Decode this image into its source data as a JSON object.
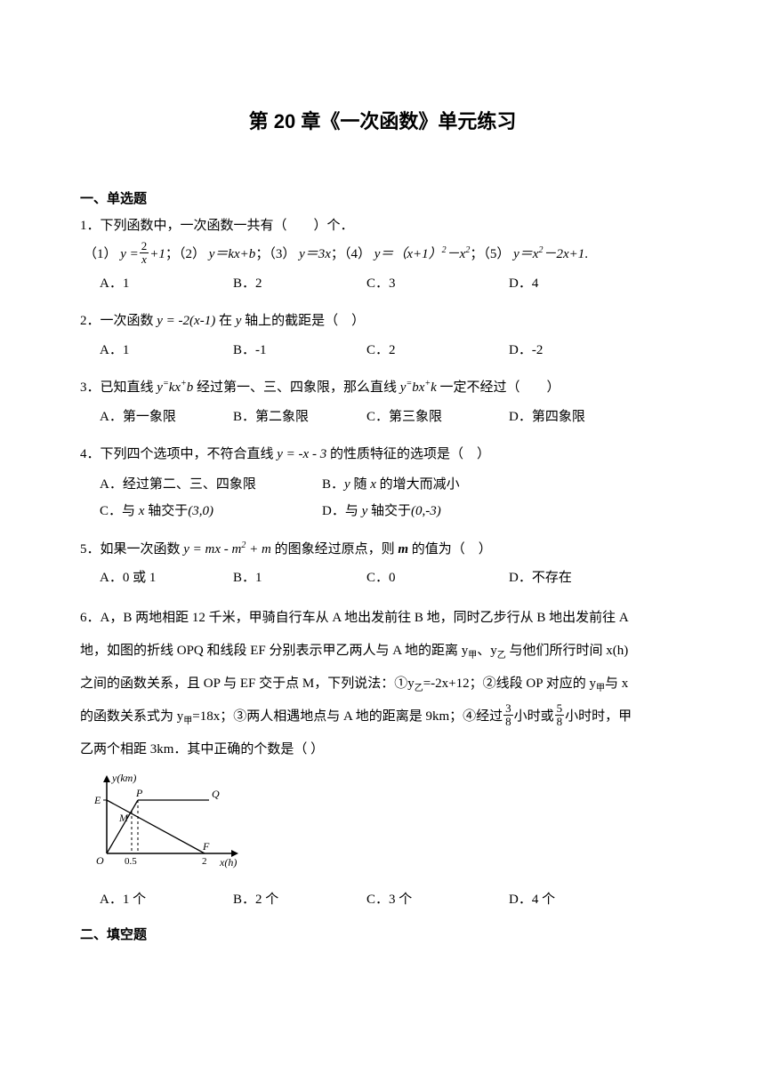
{
  "title": "第 20 章《一次函数》单元练习",
  "section1_header": "一、单选题",
  "section2_header": "二、填空题",
  "q1": {
    "stem": "1．下列函数中，一次函数一共有（　　）个．",
    "sub_prefix": "（1）",
    "sub_part2": "（2）",
    "sub_part3": "（3）",
    "sub_part4": "（4）",
    "sub_part5": "（5）",
    "optA": "A．1",
    "optB": "B．2",
    "optC": "C．3",
    "optD": "D．4"
  },
  "q2": {
    "stem_pre": "2．一次函数 ",
    "stem_mid": " 在 ",
    "stem_post": " 轴上的截距是（　）",
    "optA": "A．1",
    "optB": "B．-1",
    "optC": "C．2",
    "optD": "D．-2"
  },
  "q3": {
    "stem_pre": "3．已知直线 ",
    "stem_mid": " 经过第一、三、四象限，那么直线 ",
    "stem_post": " 一定不经过（　　）",
    "optA": "A．第一象限",
    "optB": "B．第二象限",
    "optC": "C．第三象限",
    "optD": "D．第四象限"
  },
  "q4": {
    "stem_pre": "4．下列四个选项中，不符合直线 ",
    "stem_post": " 的性质特征的选项是（　）",
    "optA": "A．经过第二、三、四象限",
    "optB_pre": "B．",
    "optB_mid": " 随 ",
    "optB_post": " 的增大而减小",
    "optC_pre": "C．与 ",
    "optC_mid": " 轴交于",
    "optC_val": "(3,0)",
    "optD_pre": "D．与 ",
    "optD_mid": " 轴交于",
    "optD_val": "(0,-3)"
  },
  "q5": {
    "stem_pre": "5．如果一次函数 ",
    "stem_mid": " 的图象经过原点，则 ",
    "stem_post": " 的值为（　）",
    "optA": "A．0 或 1",
    "optB": "B．1",
    "optC": "C．0",
    "optD": "D．不存在"
  },
  "q6": {
    "line1": "6．A，B 两地相距 12 千米，甲骑自行车从 A 地出发前往 B 地，同时乙步行从 B 地出发前往 A",
    "line2_pre": "地，如图的折线 OPQ 和线段 EF 分别表示甲乙两人与 A 地的距离 y",
    "line2_sub1": "甲",
    "line2_mid": "、y",
    "line2_sub2": "乙",
    "line2_post": " 与他们所行时间 x(h)",
    "line3_pre": "之间的函数关系，且 OP 与 EF 交于点 M，下列说法：①y",
    "line3_sub1": "乙",
    "line3_mid": "=-2x+12；②线段 OP 对应的 y",
    "line3_sub2": "甲",
    "line3_post": "与 x",
    "line4_pre": "的函数关系式为 y",
    "line4_sub": "甲",
    "line4_mid1": "=18x；③两人相遇地点与 A 地的距离是 9km；④经过",
    "line4_mid2": "小时或",
    "line4_post": "小时时，甲",
    "line5": "乙两个相距 3km．其中正确的个数是（  ）",
    "optA": "A．1 个",
    "optB": "B．2 个",
    "optC": "C．3 个",
    "optD": "D．4 个"
  },
  "graph": {
    "ylabel": "y(km)",
    "xlabel": "x(h)",
    "pointE": "E",
    "pointP": "P",
    "pointQ": "Q",
    "pointM": "M",
    "pointF": "F",
    "pointO": "O",
    "tick05": "0.5",
    "tick2": "2",
    "ox": 20,
    "oy": 90,
    "ytop": 5,
    "xright": 165,
    "ey": 30,
    "px": 55,
    "qx": 135,
    "fx": 130,
    "mx": 48,
    "my": 42
  },
  "fractions": {
    "f2x_num": "2",
    "f2x_den": "x",
    "f38_num": "3",
    "f38_den": "8",
    "f58_num": "5",
    "f58_den": "8"
  }
}
